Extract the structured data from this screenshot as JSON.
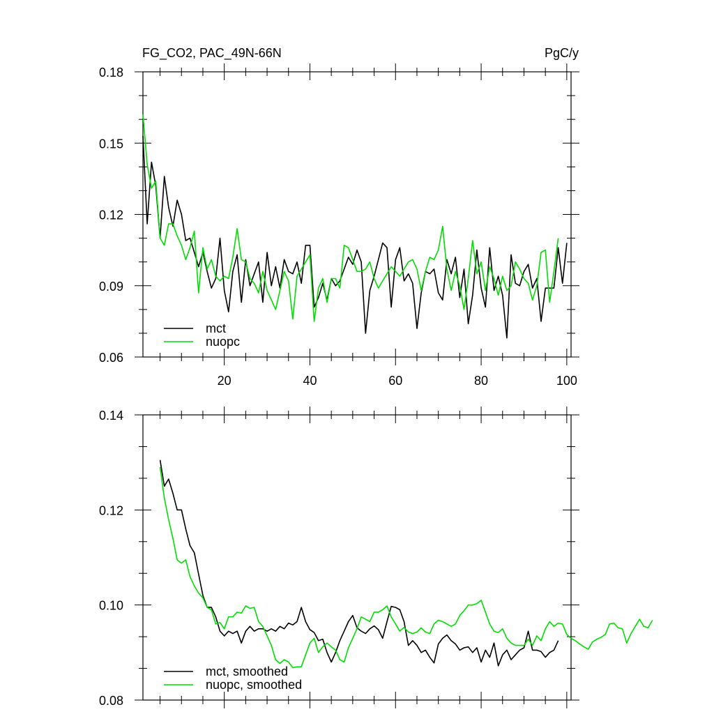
{
  "header": {
    "title_left": "FG_CO2, PAC_49N-66N",
    "title_right": "PgC/y"
  },
  "colors": {
    "mct": "#000000",
    "nuopc": "#00dd00"
  },
  "chart_data": [
    {
      "type": "line",
      "title": "FG_CO2, PAC_49N-66N",
      "units": "PgC/y",
      "xlim": [
        1,
        101
      ],
      "ylim": [
        0.06,
        0.18
      ],
      "xticks": [
        20,
        40,
        60,
        80,
        100
      ],
      "yticks": [
        0.06,
        0.09,
        0.12,
        0.15,
        0.18
      ],
      "ytick_labels": [
        "0.06",
        "0.09",
        "0.12",
        "0.15",
        "0.18"
      ],
      "legend_position": "bottom-left",
      "x_start": 1,
      "series": [
        {
          "name": "mct",
          "color": "#000000",
          "values": [
            0.153,
            0.116,
            0.142,
            0.132,
            0.11,
            0.136,
            0.123,
            0.115,
            0.126,
            0.12,
            0.109,
            0.11,
            0.104,
            0.098,
            0.104,
            0.096,
            0.089,
            0.093,
            0.11,
            0.088,
            0.079,
            0.096,
            0.103,
            0.083,
            0.101,
            0.09,
            0.095,
            0.1,
            0.083,
            0.104,
            0.09,
            0.098,
            0.089,
            0.101,
            0.096,
            0.095,
            0.1,
            0.091,
            0.107,
            0.107,
            0.081,
            0.085,
            0.091,
            0.084,
            0.093,
            0.09,
            0.092,
            0.097,
            0.102,
            0.099,
            0.105,
            0.1,
            0.07,
            0.088,
            0.094,
            0.101,
            0.108,
            0.106,
            0.081,
            0.101,
            0.106,
            0.092,
            0.095,
            0.091,
            0.072,
            0.087,
            0.096,
            0.095,
            0.097,
            0.087,
            0.084,
            0.101,
            0.095,
            0.102,
            0.085,
            0.097,
            0.074,
            0.086,
            0.105,
            0.089,
            0.081,
            0.106,
            0.088,
            0.094,
            0.086,
            0.068,
            0.103,
            0.091,
            0.09,
            0.096,
            0.099,
            0.089,
            0.093,
            0.075,
            0.089,
            0.089,
            0.089,
            0.106,
            0.091,
            0.108
          ]
        },
        {
          "name": "nuopc",
          "color": "#00dd00",
          "values": [
            0.162,
            0.141,
            0.131,
            0.134,
            0.11,
            0.107,
            0.116,
            0.116,
            0.111,
            0.107,
            0.101,
            0.106,
            0.113,
            0.087,
            0.106,
            0.097,
            0.101,
            0.094,
            0.092,
            0.094,
            0.093,
            0.102,
            0.114,
            0.101,
            0.1,
            0.093,
            0.091,
            0.087,
            0.096,
            0.088,
            0.084,
            0.08,
            0.088,
            0.096,
            0.092,
            0.076,
            0.094,
            0.097,
            0.1,
            0.103,
            0.075,
            0.089,
            0.093,
            0.083,
            0.093,
            0.093,
            0.089,
            0.107,
            0.106,
            0.101,
            0.096,
            0.096,
            0.097,
            0.1,
            0.093,
            0.089,
            0.092,
            0.095,
            0.098,
            0.096,
            0.094,
            0.097,
            0.1,
            0.101,
            0.097,
            0.088,
            0.096,
            0.102,
            0.101,
            0.105,
            0.115,
            0.097,
            0.088,
            0.096,
            0.09,
            0.08,
            0.093,
            0.109,
            0.095,
            0.1,
            0.088,
            0.098,
            0.093,
            0.086,
            0.094,
            0.088,
            0.09,
            0.1,
            0.097,
            0.093,
            0.091,
            0.084,
            0.09,
            0.104,
            0.105,
            0.083,
            0.096,
            0.11
          ]
        }
      ]
    },
    {
      "type": "line",
      "xlim": [
        1,
        101
      ],
      "ylim": [
        0.08,
        0.14
      ],
      "xticks": [
        20,
        40,
        60,
        80,
        100
      ],
      "yticks": [
        0.08,
        0.1,
        0.12,
        0.14
      ],
      "ytick_labels": [
        "0.08",
        "0.10",
        "0.12",
        "0.14"
      ],
      "legend_position": "bottom-left",
      "x_start": 5,
      "series": [
        {
          "name": "mct, smoothed",
          "color": "#000000",
          "values": [
            0.1305,
            0.125,
            0.1265,
            0.1235,
            0.12,
            0.12,
            0.116,
            0.1125,
            0.111,
            0.1065,
            0.102,
            0.0995,
            0.0995,
            0.0975,
            0.0945,
            0.0935,
            0.0945,
            0.094,
            0.0945,
            0.092,
            0.0945,
            0.0955,
            0.0945,
            0.095,
            0.095,
            0.0945,
            0.095,
            0.0945,
            0.0955,
            0.095,
            0.0962,
            0.0958,
            0.0965,
            0.0995,
            0.0965,
            0.0948,
            0.0942,
            0.0925,
            0.0928,
            0.09,
            0.088,
            0.09,
            0.0925,
            0.0945,
            0.0965,
            0.0978,
            0.0952,
            0.0945,
            0.094,
            0.095,
            0.0956,
            0.0948,
            0.093,
            0.0965,
            0.0997,
            0.0995,
            0.099,
            0.0965,
            0.0915,
            0.0925,
            0.0915,
            0.09,
            0.0905,
            0.089,
            0.0878,
            0.0918,
            0.093,
            0.0937,
            0.0925,
            0.0918,
            0.0905,
            0.091,
            0.0912,
            0.09,
            0.091,
            0.088,
            0.0905,
            0.089,
            0.092,
            0.0872,
            0.0895,
            0.0905,
            0.0885,
            0.0895,
            0.0905,
            0.091,
            0.0945,
            0.0905,
            0.0905,
            0.0902,
            0.089,
            0.09,
            0.0905,
            0.0925
          ]
        },
        {
          "name": "nuopc, smoothed",
          "color": "#00dd00",
          "values": [
            0.129,
            0.1225,
            0.118,
            0.114,
            0.1095,
            0.1088,
            0.1095,
            0.106,
            0.104,
            0.1025,
            0.1015,
            0.0995,
            0.099,
            0.096,
            0.0963,
            0.095,
            0.0975,
            0.0975,
            0.0985,
            0.0983,
            0.0998,
            0.0993,
            0.0995,
            0.0965,
            0.0955,
            0.0935,
            0.0915,
            0.0885,
            0.0877,
            0.0885,
            0.088,
            0.0868,
            0.087,
            0.087,
            0.0895,
            0.092,
            0.093,
            0.09,
            0.0912,
            0.092,
            0.0912,
            0.0905,
            0.0885,
            0.088,
            0.091,
            0.093,
            0.095,
            0.0975,
            0.097,
            0.0965,
            0.0985,
            0.0985,
            0.099,
            0.0998,
            0.0975,
            0.096,
            0.0945,
            0.0953,
            0.0943,
            0.094,
            0.0943,
            0.0952,
            0.0943,
            0.094,
            0.096,
            0.0968,
            0.0965,
            0.096,
            0.0955,
            0.096,
            0.0978,
            0.0988,
            0.1,
            0.1,
            0.1003,
            0.101,
            0.0985,
            0.096,
            0.0945,
            0.0942,
            0.095,
            0.093,
            0.092,
            0.0915,
            0.0915,
            0.0915,
            0.0928,
            0.0915,
            0.0935,
            0.0925,
            0.095,
            0.0965,
            0.0955,
            0.0962,
            0.096,
            0.0938,
            0.093,
            0.0925,
            0.0918,
            0.0912,
            0.0907,
            0.0922,
            0.0928,
            0.0932,
            0.0938,
            0.096,
            0.0962,
            0.0952,
            0.095,
            0.092,
            0.094,
            0.0955,
            0.097,
            0.0955,
            0.0952,
            0.0968
          ]
        }
      ]
    }
  ]
}
